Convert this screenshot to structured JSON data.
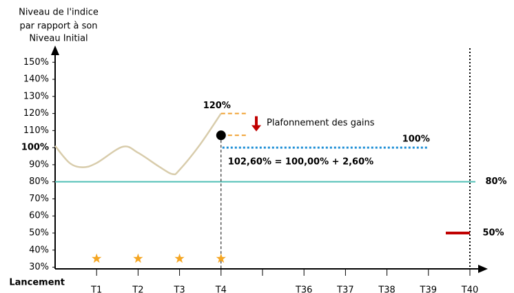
{
  "chart_data": {
    "type": "line",
    "ylabel": [
      "Niveau de l'indice",
      "par rapport à son",
      "Niveau Initial"
    ],
    "categories": [
      "Lancement",
      "T1",
      "T2",
      "T3",
      "T4",
      null,
      "T36",
      "T37",
      "T38",
      "T39",
      "T40"
    ],
    "ylim": [
      29,
      159
    ],
    "yticks": [
      {
        "value": 30,
        "label": "30%"
      },
      {
        "value": 40,
        "label": "40%"
      },
      {
        "value": 50,
        "label": "50%"
      },
      {
        "value": 60,
        "label": "60%"
      },
      {
        "value": 70,
        "label": "70%"
      },
      {
        "value": 80,
        "label": "80%"
      },
      {
        "value": 90,
        "label": "90%"
      },
      {
        "value": 100,
        "label": "100%"
      },
      {
        "value": 110,
        "label": "110%"
      },
      {
        "value": 120,
        "label": "120%"
      },
      {
        "value": 130,
        "label": "130%"
      },
      {
        "value": 140,
        "label": "140%"
      },
      {
        "value": 150,
        "label": "150%"
      }
    ],
    "highlight_ytick": 100,
    "series": [
      {
        "color": "#d8ccab",
        "x": [
          0,
          0.35,
          0.67,
          1,
          1.63,
          2,
          2.5,
          2.83,
          3,
          3.5,
          4
        ],
        "values": [
          101,
          91,
          88.5,
          91,
          100.5,
          97,
          89,
          84.5,
          87,
          102,
          120
        ]
      }
    ],
    "cap": {
      "value": 120,
      "label": "120%",
      "color": "#d8ccab",
      "text": "Plafonnement des gains",
      "text_color": "#c00000",
      "dash_color": "#f0a030"
    },
    "point": {
      "x": 4,
      "value": 107.2,
      "color": "#000000"
    },
    "strike": {
      "value": 100,
      "label": "100%",
      "color": "#1f8fd6",
      "x_end": 9
    },
    "formula": "102,60% = 100,00% + 2,60%",
    "barrier": {
      "value": 80,
      "label": "80%",
      "color": "#4fbfb5"
    },
    "protection": {
      "value": 50,
      "label": "50%",
      "color": "#c00000"
    },
    "stars": {
      "x": [
        1,
        2,
        3,
        4
      ],
      "value": 35,
      "color": "#f5a623"
    }
  }
}
